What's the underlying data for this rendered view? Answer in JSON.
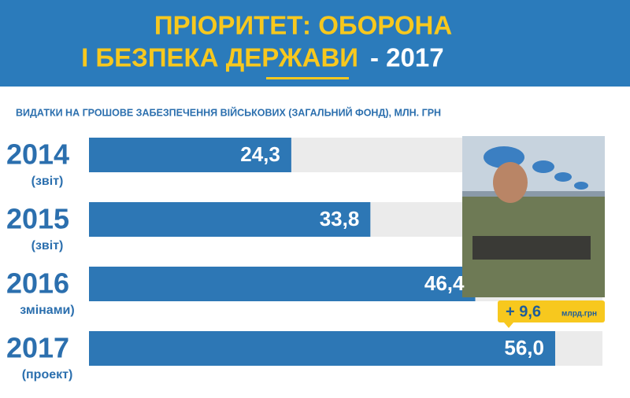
{
  "chart_data": {
    "type": "bar",
    "title": [
      "ПРІОРИТЕТ: ОБОРОНА",
      "І БЕЗПЕКА ДЕРЖАВИ"
    ],
    "title_suffix": "- 2017",
    "subtitle": "ВИДАТКИ НА ГРОШОВЕ ЗАБЕЗПЕЧЕННЯ ВІЙСЬКОВИХ (ЗАГАЛЬНИЙ ФОНД), МЛН. ГРН",
    "categories": [
      "2014",
      "2015",
      "2016",
      "2017"
    ],
    "category_notes": [
      "(звіт)",
      "(звіт)",
      "змінами)",
      "(проект)"
    ],
    "values": [
      24.3,
      33.8,
      46.4,
      56.0
    ],
    "value_labels": [
      "24,3",
      "33,8",
      "46,4",
      "56,0"
    ],
    "color": "#2d77b5",
    "annotation": {
      "text": "+ 9,6",
      "unit": "млрд.грн"
    }
  }
}
